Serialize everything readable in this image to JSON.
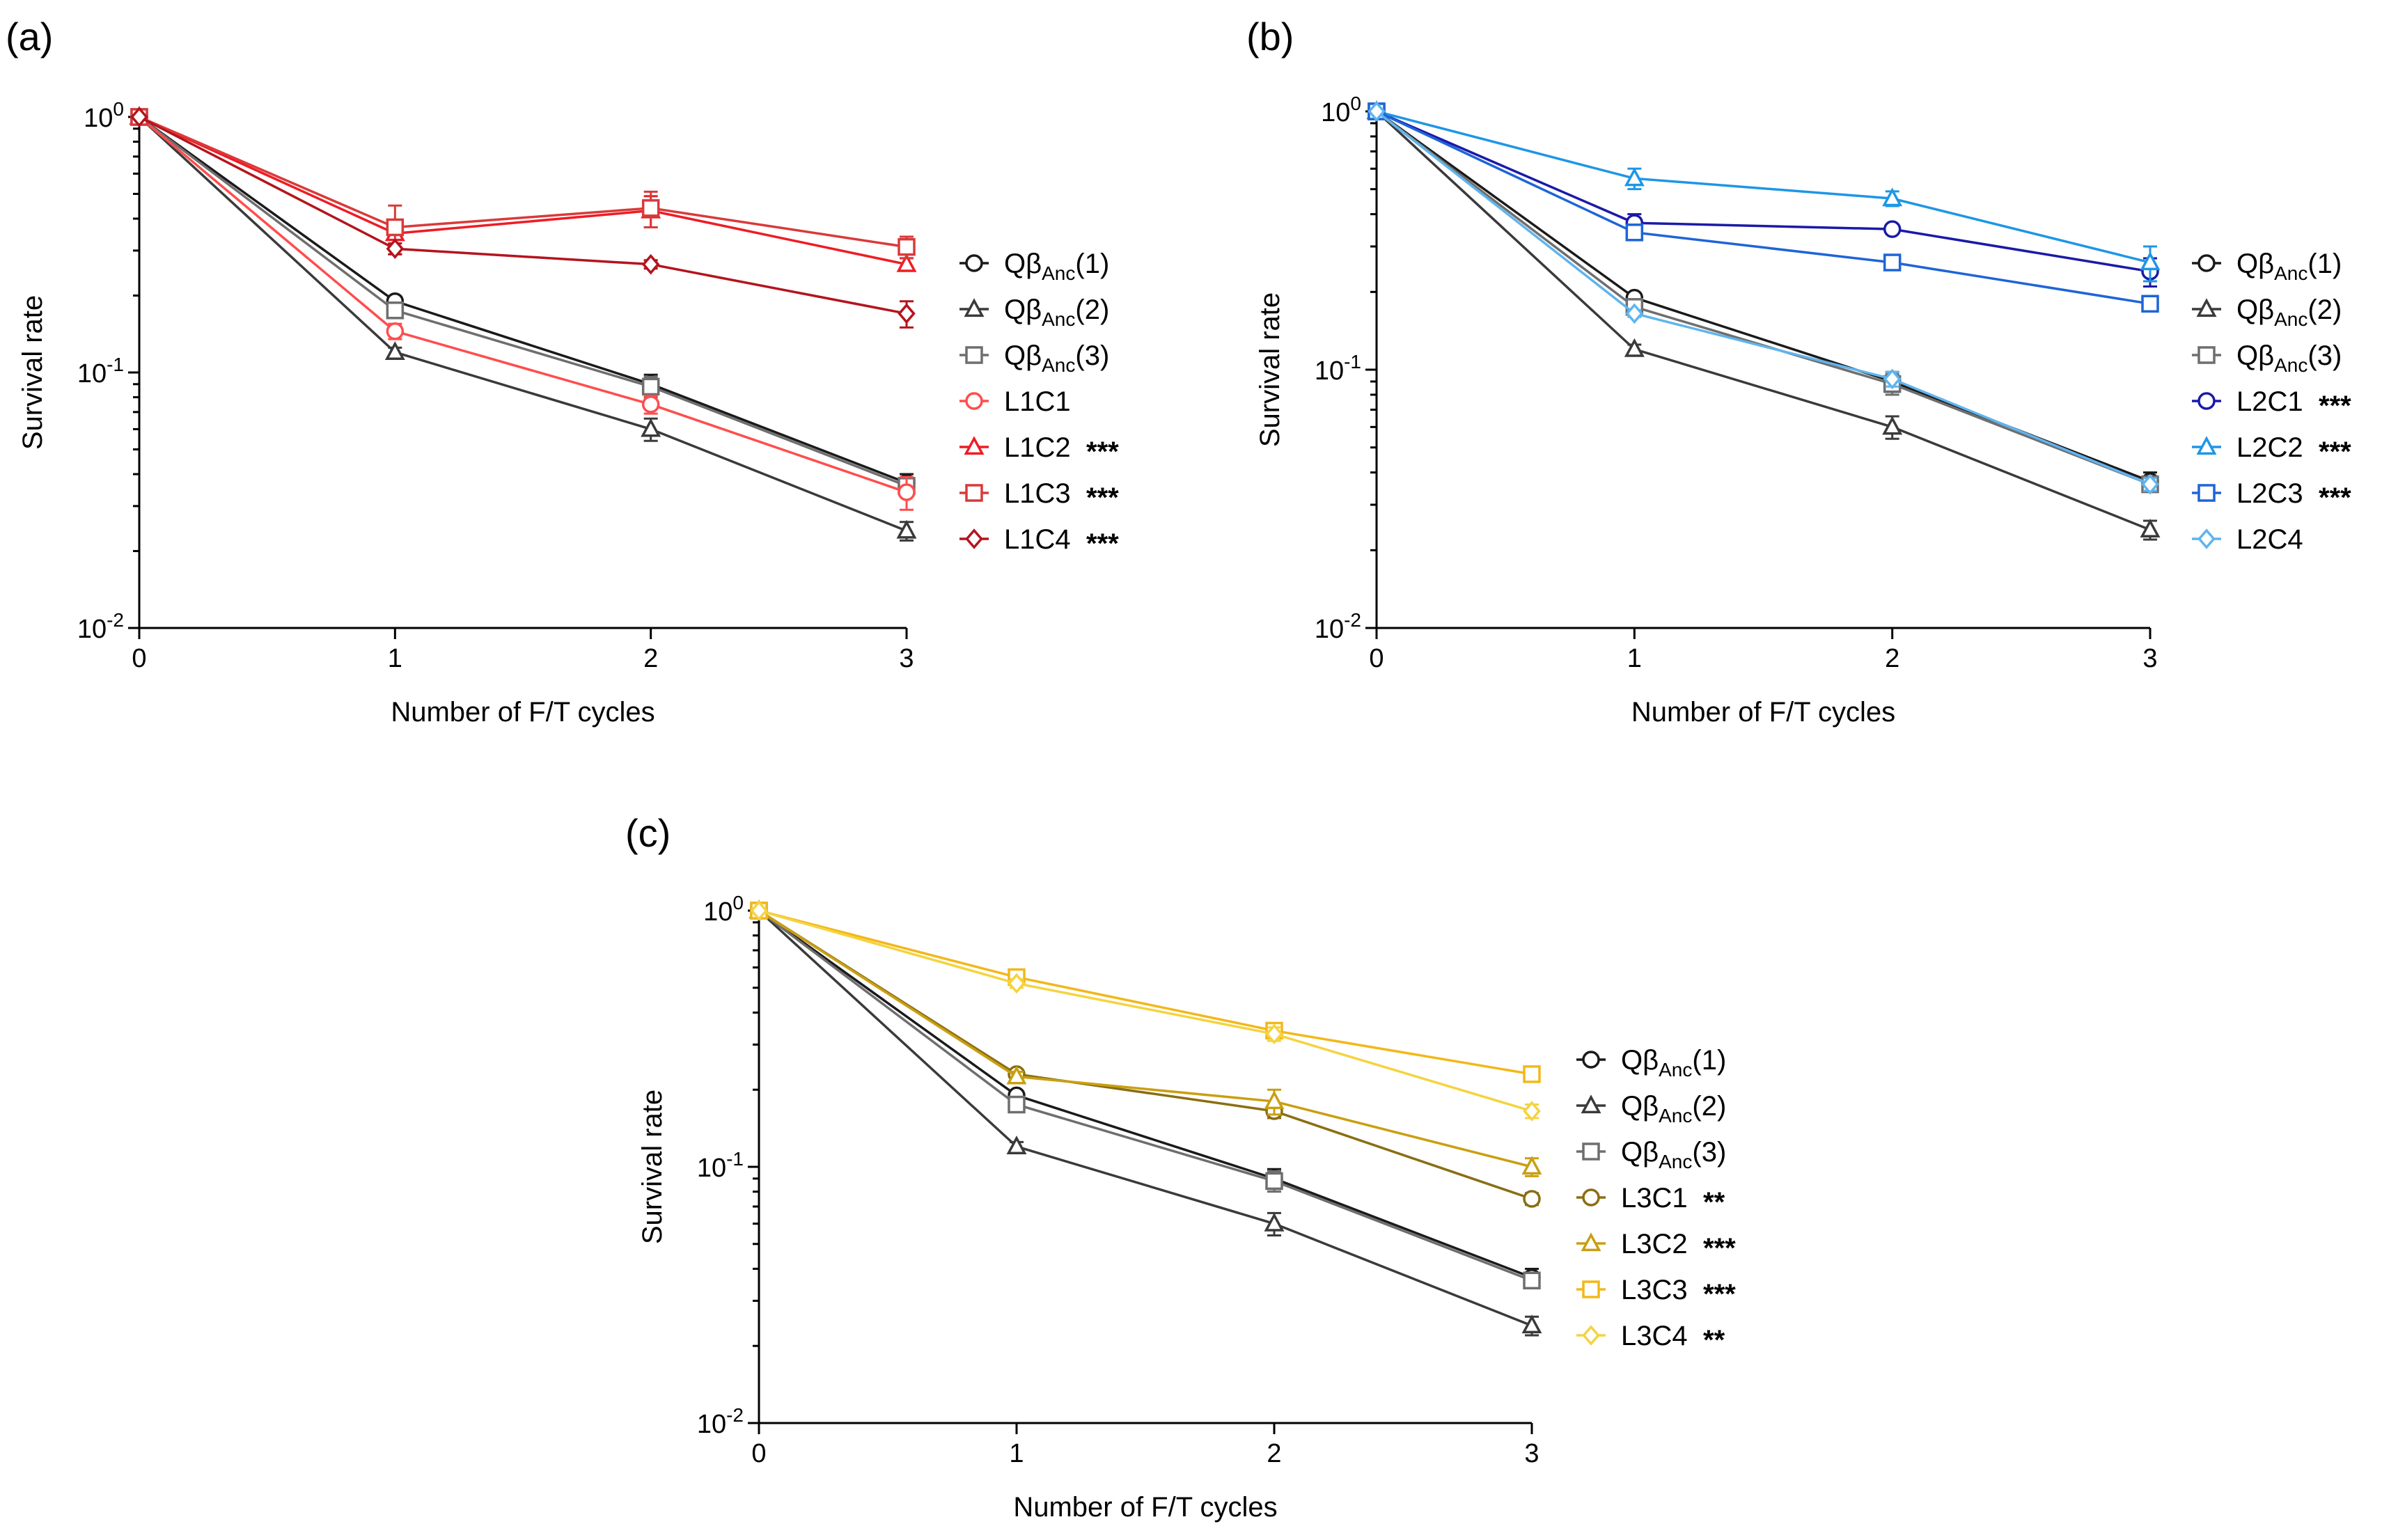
{
  "colors": {
    "black": "#1a1a1a",
    "gray1": "#3a3a3a",
    "gray2": "#6e6e6e",
    "red": "#ff4d4d",
    "red2": "#ee1c25",
    "red3": "#d93a3a",
    "darkred": "#b4141e",
    "navy": "#1a1aa8",
    "sky": "#1e96e6",
    "blue": "#1e64d8",
    "lightblue": "#5fb4ee",
    "olive": "#8a6e12",
    "ochre": "#c99f12",
    "gold": "#f2b81a",
    "yellow": "#f5d340"
  },
  "chart_data": [
    {
      "panel": "(a)",
      "type": "line",
      "x": [
        0,
        1,
        2,
        3
      ],
      "xlabel": "Number of F/T cycles",
      "ylabel": "Survival rate",
      "yscale": "log",
      "ylim": [
        0.01,
        1
      ],
      "xticks": [
        "0",
        "1",
        "2",
        "3"
      ],
      "yticks": [
        "10^0",
        "10^-1",
        "10^-2"
      ],
      "series": [
        {
          "name": "Qβ",
          "sub": "Anc",
          "suffix": "(1)",
          "stars": "",
          "marker": "circle",
          "color": "black",
          "values": [
            1,
            0.19,
            0.09,
            0.037
          ],
          "err": [
            0,
            0.008,
            0.008,
            0.003
          ]
        },
        {
          "name": "Qβ",
          "sub": "Anc",
          "suffix": "(2)",
          "stars": "",
          "marker": "triangle",
          "color": "gray1",
          "values": [
            1,
            0.12,
            0.06,
            0.024
          ],
          "err": [
            0,
            0.005,
            0.006,
            0.002
          ]
        },
        {
          "name": "Qβ",
          "sub": "Anc",
          "suffix": "(3)",
          "stars": "",
          "marker": "square",
          "color": "gray2",
          "values": [
            1,
            0.175,
            0.088,
            0.036
          ],
          "err": [
            0,
            0.006,
            0.008,
            0.002
          ]
        },
        {
          "name": "L1C1",
          "sub": "",
          "suffix": "",
          "stars": "",
          "marker": "circle",
          "color": "red",
          "values": [
            1,
            0.145,
            0.075,
            0.034
          ],
          "err": [
            0,
            0.01,
            0.006,
            0.005
          ]
        },
        {
          "name": "L1C2",
          "sub": "",
          "suffix": "",
          "stars": "***",
          "marker": "triangle",
          "color": "red2",
          "values": [
            1,
            0.35,
            0.43,
            0.265
          ],
          "err": [
            0,
            0.04,
            0.06,
            0.015
          ]
        },
        {
          "name": "L1C3",
          "sub": "",
          "suffix": "",
          "stars": "***",
          "marker": "square",
          "color": "red3",
          "values": [
            1,
            0.37,
            0.44,
            0.31
          ],
          "err": [
            0,
            0.08,
            0.07,
            0.03
          ]
        },
        {
          "name": "L1C4",
          "sub": "",
          "suffix": "",
          "stars": "***",
          "marker": "diamond",
          "color": "darkred",
          "values": [
            1,
            0.305,
            0.265,
            0.17
          ],
          "err": [
            0,
            0.015,
            0.01,
            0.02
          ]
        }
      ]
    },
    {
      "panel": "(b)",
      "type": "line",
      "x": [
        0,
        1,
        2,
        3
      ],
      "xlabel": "Number of F/T cycles",
      "ylabel": "Survival rate",
      "yscale": "log",
      "ylim": [
        0.01,
        1
      ],
      "xticks": [
        "0",
        "1",
        "2",
        "3"
      ],
      "yticks": [
        "10^0",
        "10^-1",
        "10^-2"
      ],
      "series": [
        {
          "name": "Qβ",
          "sub": "Anc",
          "suffix": "(1)",
          "stars": "",
          "marker": "circle",
          "color": "black",
          "values": [
            1,
            0.19,
            0.09,
            0.037
          ],
          "err": [
            0,
            0.008,
            0.008,
            0.003
          ]
        },
        {
          "name": "Qβ",
          "sub": "Anc",
          "suffix": "(2)",
          "stars": "",
          "marker": "triangle",
          "color": "gray1",
          "values": [
            1,
            0.12,
            0.06,
            0.024
          ],
          "err": [
            0,
            0.005,
            0.006,
            0.002
          ]
        },
        {
          "name": "Qβ",
          "sub": "Anc",
          "suffix": "(3)",
          "stars": "",
          "marker": "square",
          "color": "gray2",
          "values": [
            1,
            0.175,
            0.088,
            0.036
          ],
          "err": [
            0,
            0.006,
            0.008,
            0.002
          ]
        },
        {
          "name": "L2C1",
          "sub": "",
          "suffix": "",
          "stars": "***",
          "marker": "circle",
          "color": "navy",
          "values": [
            1,
            0.37,
            0.35,
            0.24
          ],
          "err": [
            0,
            0.03,
            0.01,
            0.03
          ]
        },
        {
          "name": "L2C2",
          "sub": "",
          "suffix": "",
          "stars": "***",
          "marker": "triangle",
          "color": "sky",
          "values": [
            1,
            0.55,
            0.46,
            0.26
          ],
          "err": [
            0,
            0.05,
            0.03,
            0.04
          ]
        },
        {
          "name": "L2C3",
          "sub": "",
          "suffix": "",
          "stars": "***",
          "marker": "square",
          "color": "blue",
          "values": [
            1,
            0.34,
            0.26,
            0.18
          ],
          "err": [
            0,
            0.02,
            0.01,
            0.01
          ]
        },
        {
          "name": "L2C4",
          "sub": "",
          "suffix": "",
          "stars": "",
          "marker": "diamond",
          "color": "lightblue",
          "values": [
            1,
            0.165,
            0.092,
            0.036
          ],
          "err": [
            0,
            0.005,
            0.006,
            0.002
          ]
        }
      ]
    },
    {
      "panel": "(c)",
      "type": "line",
      "x": [
        0,
        1,
        2,
        3
      ],
      "xlabel": "Number of F/T cycles",
      "ylabel": "Survival rate",
      "yscale": "log",
      "ylim": [
        0.01,
        1
      ],
      "xticks": [
        "0",
        "1",
        "2",
        "3"
      ],
      "yticks": [
        "10^0",
        "10^-1",
        "10^-2"
      ],
      "series": [
        {
          "name": "Qβ",
          "sub": "Anc",
          "suffix": "(1)",
          "stars": "",
          "marker": "circle",
          "color": "black",
          "values": [
            1,
            0.19,
            0.09,
            0.037
          ],
          "err": [
            0,
            0.008,
            0.008,
            0.003
          ]
        },
        {
          "name": "Qβ",
          "sub": "Anc",
          "suffix": "(2)",
          "stars": "",
          "marker": "triangle",
          "color": "gray1",
          "values": [
            1,
            0.12,
            0.06,
            0.024
          ],
          "err": [
            0,
            0.005,
            0.006,
            0.002
          ]
        },
        {
          "name": "Qβ",
          "sub": "Anc",
          "suffix": "(3)",
          "stars": "",
          "marker": "square",
          "color": "gray2",
          "values": [
            1,
            0.175,
            0.088,
            0.036
          ],
          "err": [
            0,
            0.006,
            0.008,
            0.002
          ]
        },
        {
          "name": "L3C1",
          "sub": "",
          "suffix": "",
          "stars": "**",
          "marker": "circle",
          "color": "olive",
          "values": [
            1,
            0.23,
            0.165,
            0.075
          ],
          "err": [
            0,
            0.01,
            0.01,
            0.004
          ]
        },
        {
          "name": "L3C2",
          "sub": "",
          "suffix": "",
          "stars": "***",
          "marker": "triangle",
          "color": "ochre",
          "values": [
            1,
            0.225,
            0.18,
            0.1
          ],
          "err": [
            0,
            0.01,
            0.02,
            0.008
          ]
        },
        {
          "name": "L3C3",
          "sub": "",
          "suffix": "",
          "stars": "***",
          "marker": "square",
          "color": "gold",
          "values": [
            1,
            0.55,
            0.34,
            0.23
          ],
          "err": [
            0,
            0.02,
            0.02,
            0.01
          ]
        },
        {
          "name": "L3C4",
          "sub": "",
          "suffix": "",
          "stars": "**",
          "marker": "diamond",
          "color": "yellow",
          "values": [
            1,
            0.52,
            0.33,
            0.165
          ],
          "err": [
            0,
            0.02,
            0.02,
            0.01
          ]
        }
      ]
    }
  ]
}
